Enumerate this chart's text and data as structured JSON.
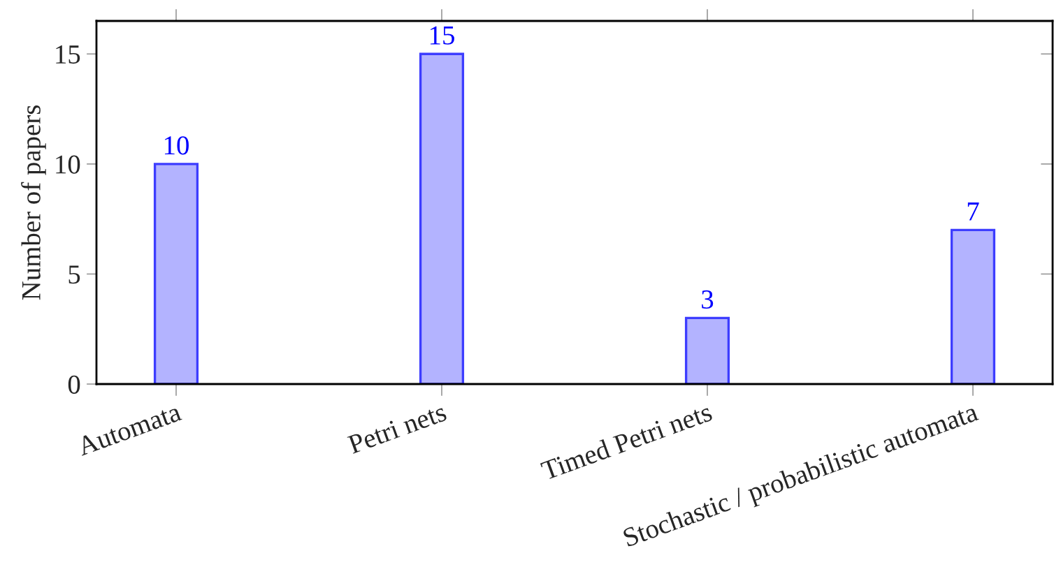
{
  "chart_data": {
    "type": "bar",
    "ylabel": "Number of papers",
    "categories": [
      "Automata",
      "Petri nets",
      "Timed Petri nets",
      "Stochastic / probabilistic automata"
    ],
    "values": [
      10,
      15,
      3,
      7
    ],
    "color": "#b3b3ff",
    "ylim": [
      0,
      16.5
    ],
    "yticks": [
      0,
      5,
      10,
      15
    ],
    "data_labels": true
  }
}
